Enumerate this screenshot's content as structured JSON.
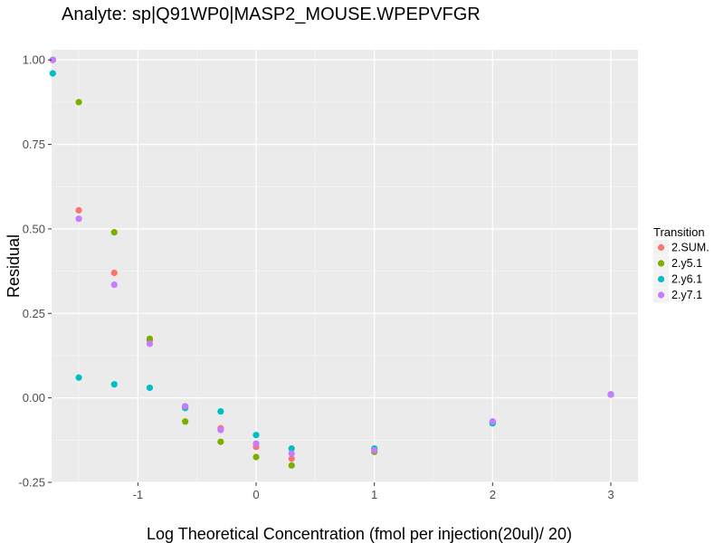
{
  "chart_data": {
    "type": "scatter",
    "title": "Analyte: sp|Q91WP0|MASP2_MOUSE.WPEPVFGR",
    "xlabel": "Log Theoretical Concentration (fmol per injection(20ul)/ 20)",
    "ylabel": "Residual",
    "xlim": [
      -1.73,
      3.23
    ],
    "ylim": [
      -0.25,
      1.03
    ],
    "x_ticks": [
      {
        "value": -1,
        "label": "-1"
      },
      {
        "value": 0,
        "label": "0"
      },
      {
        "value": 1,
        "label": "1"
      },
      {
        "value": 2,
        "label": "2"
      },
      {
        "value": 3,
        "label": "3"
      }
    ],
    "y_ticks": [
      {
        "value": -0.25,
        "label": "-0.25"
      },
      {
        "value": 0,
        "label": "0.00"
      },
      {
        "value": 0.25,
        "label": "0.25"
      },
      {
        "value": 0.5,
        "label": "0.50"
      },
      {
        "value": 0.75,
        "label": "0.75"
      },
      {
        "value": 1.0,
        "label": "1.00"
      }
    ],
    "grid": true,
    "legend": {
      "title": "Transition",
      "placement": "right"
    },
    "series": [
      {
        "name": "2.SUM.",
        "color": "#F8766D",
        "x": [
          -1.72,
          -1.5,
          -1.2,
          -0.9,
          -0.6,
          -0.3,
          0,
          0.3,
          1,
          2,
          3
        ],
        "y": [
          1.0,
          0.555,
          0.37,
          0.17,
          -0.025,
          -0.09,
          -0.145,
          -0.18,
          -0.155,
          -0.07,
          0.01
        ]
      },
      {
        "name": "2.y5.1",
        "color": "#7CAE00",
        "x": [
          -1.72,
          -1.5,
          -1.2,
          -0.9,
          -0.6,
          -0.3,
          0,
          0.3,
          1,
          2,
          3
        ],
        "y": [
          1.0,
          0.875,
          0.49,
          0.175,
          -0.07,
          -0.13,
          -0.175,
          -0.2,
          -0.16,
          -0.075,
          0.01
        ]
      },
      {
        "name": "2.y6.1",
        "color": "#00BFC4",
        "x": [
          -1.72,
          -1.5,
          -1.2,
          -0.9,
          -0.6,
          -0.3,
          0,
          0.3,
          1,
          2,
          3
        ],
        "y": [
          0.96,
          0.06,
          0.04,
          0.03,
          -0.03,
          -0.04,
          -0.11,
          -0.15,
          -0.15,
          -0.075,
          0.01
        ]
      },
      {
        "name": "2.y7.1",
        "color": "#C77CFF",
        "x": [
          -1.72,
          -1.5,
          -1.2,
          -0.9,
          -0.6,
          -0.3,
          0,
          0.3,
          1,
          2,
          3
        ],
        "y": [
          1.0,
          0.53,
          0.335,
          0.16,
          -0.025,
          -0.095,
          -0.135,
          -0.165,
          -0.155,
          -0.07,
          0.01
        ]
      }
    ]
  }
}
